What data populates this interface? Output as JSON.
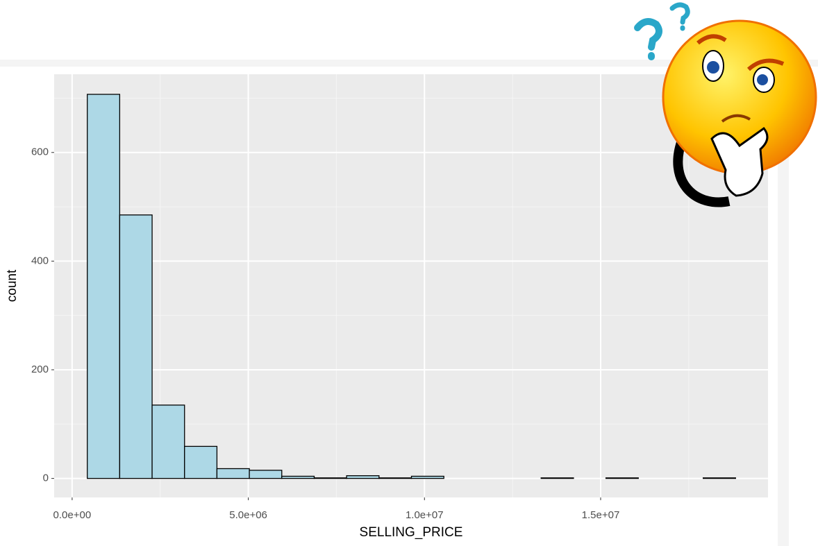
{
  "chart_data": {
    "type": "histogram",
    "x_label": "SELLING_PRICE",
    "y_label": "count",
    "bins": [
      430000,
      1350000,
      2270000,
      3190000,
      4110000,
      5030000,
      5950000,
      6870000,
      7790000,
      8710000,
      9630000,
      10550000,
      11470000,
      12390000,
      13310000,
      14230000,
      15150000,
      16070000,
      16990000,
      17910000,
      18830000
    ],
    "values": [
      707,
      485,
      135,
      59,
      18,
      15,
      4,
      1,
      5,
      1,
      4,
      0,
      0,
      0,
      1,
      0,
      1,
      0,
      0,
      1
    ],
    "color": "#add8e6",
    "edge_color": "#000000",
    "xlim": [
      -510000,
      19750000
    ],
    "xticks": [
      {
        "value": 0,
        "label": "0.0e+00"
      },
      {
        "value": 5000000,
        "label": "5.0e+06"
      },
      {
        "value": 10000000,
        "label": "1.0e+07"
      },
      {
        "value": 15000000,
        "label": "1.5e+07"
      }
    ],
    "ylim": [
      -35,
      744
    ],
    "yticks": [
      0,
      200,
      400,
      600
    ],
    "grid": true
  }
}
